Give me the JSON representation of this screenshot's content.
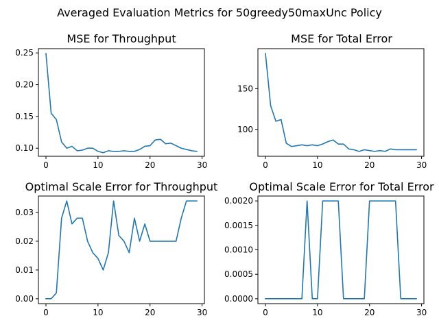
{
  "figure": {
    "title": "Averaged Evaluation Metrics for 50greedy50maxUnc Policy",
    "line_color": "#1f77b4"
  },
  "chart_data": [
    {
      "type": "line",
      "title": "MSE for Throughput",
      "xlabel": "",
      "ylabel": "",
      "x": [
        0,
        1,
        2,
        3,
        4,
        5,
        6,
        7,
        8,
        9,
        10,
        11,
        12,
        13,
        14,
        15,
        16,
        17,
        18,
        19,
        20,
        21,
        22,
        23,
        24,
        25,
        26,
        27,
        28,
        29
      ],
      "series": [
        {
          "values": [
            0.249,
            0.155,
            0.145,
            0.11,
            0.1,
            0.103,
            0.096,
            0.097,
            0.1,
            0.1,
            0.095,
            0.093,
            0.096,
            0.095,
            0.095,
            0.096,
            0.095,
            0.095,
            0.098,
            0.103,
            0.104,
            0.113,
            0.114,
            0.107,
            0.108,
            0.104,
            0.1,
            0.098,
            0.096,
            0.095
          ]
        }
      ],
      "xlim": [
        -1.45,
        30.45
      ],
      "ylim": [
        0.0873,
        0.2567
      ],
      "xticks": [
        0,
        10,
        20,
        30
      ],
      "xtick_labels": [
        "0",
        "10",
        "20",
        "30"
      ],
      "yticks": [
        0.1,
        0.15,
        0.2,
        0.25
      ],
      "ytick_labels": [
        "0.10",
        "0.15",
        "0.20",
        "0.25"
      ],
      "grid": false,
      "legend": "none"
    },
    {
      "type": "line",
      "title": "MSE for Total Error",
      "xlabel": "",
      "ylabel": "",
      "x": [
        0,
        1,
        2,
        3,
        4,
        5,
        6,
        7,
        8,
        9,
        10,
        11,
        12,
        13,
        14,
        15,
        16,
        17,
        18,
        19,
        20,
        21,
        22,
        23,
        24,
        25,
        26,
        27,
        28,
        29
      ],
      "series": [
        {
          "values": [
            193,
            129,
            110,
            112,
            83,
            79,
            80,
            81,
            80,
            81,
            80,
            82,
            85,
            87,
            82,
            82,
            76,
            75,
            73,
            75,
            74,
            73,
            74,
            73,
            76,
            75,
            75,
            75,
            75,
            75
          ]
        }
      ],
      "xlim": [
        -1.45,
        30.45
      ],
      "ylim": [
        67.0,
        199.0
      ],
      "xticks": [
        0,
        10,
        20,
        30
      ],
      "xtick_labels": [
        "0",
        "10",
        "20",
        "30"
      ],
      "yticks": [
        100,
        150
      ],
      "ytick_labels": [
        "100",
        "150"
      ],
      "grid": false,
      "legend": "none"
    },
    {
      "type": "line",
      "title": "Optimal Scale Error for Throughput",
      "xlabel": "",
      "ylabel": "",
      "x": [
        0,
        1,
        2,
        3,
        4,
        5,
        6,
        7,
        8,
        9,
        10,
        11,
        12,
        13,
        14,
        15,
        16,
        17,
        18,
        19,
        20,
        21,
        22,
        23,
        24,
        25,
        26,
        27,
        28,
        29
      ],
      "series": [
        {
          "values": [
            0.0,
            0.0,
            0.002,
            0.028,
            0.034,
            0.026,
            0.028,
            0.028,
            0.02,
            0.016,
            0.014,
            0.01,
            0.016,
            0.034,
            0.022,
            0.02,
            0.016,
            0.028,
            0.02,
            0.026,
            0.02,
            0.02,
            0.02,
            0.02,
            0.02,
            0.02,
            0.028,
            0.034,
            0.034,
            0.034
          ]
        }
      ],
      "xlim": [
        -1.45,
        30.45
      ],
      "ylim": [
        -0.0017,
        0.0357
      ],
      "xticks": [
        0,
        10,
        20,
        30
      ],
      "xtick_labels": [
        "0",
        "10",
        "20",
        "30"
      ],
      "yticks": [
        0.0,
        0.01,
        0.02,
        0.03
      ],
      "ytick_labels": [
        "0.00",
        "0.01",
        "0.02",
        "0.03"
      ],
      "grid": false,
      "legend": "none"
    },
    {
      "type": "line",
      "title": "Optimal Scale Error for Total Error",
      "xlabel": "",
      "ylabel": "",
      "x": [
        0,
        1,
        2,
        3,
        4,
        5,
        6,
        7,
        8,
        9,
        10,
        11,
        12,
        13,
        14,
        15,
        16,
        17,
        18,
        19,
        20,
        21,
        22,
        23,
        24,
        25,
        26,
        27,
        28,
        29
      ],
      "series": [
        {
          "values": [
            0,
            0,
            0,
            0,
            0,
            0,
            0,
            0,
            0.002,
            0,
            0,
            0.002,
            0.002,
            0.002,
            0.002,
            0,
            0,
            0,
            0,
            0,
            0.002,
            0.002,
            0.002,
            0.002,
            0.002,
            0.002,
            0,
            0,
            0,
            0
          ]
        }
      ],
      "xlim": [
        -1.45,
        30.45
      ],
      "ylim": [
        -0.0001,
        0.0021
      ],
      "xticks": [
        0,
        10,
        20,
        30
      ],
      "xtick_labels": [
        "0",
        "10",
        "20",
        "30"
      ],
      "yticks": [
        0.0,
        0.0005,
        0.001,
        0.0015,
        0.002
      ],
      "ytick_labels": [
        "0.0000",
        "0.0005",
        "0.0010",
        "0.0015",
        "0.0020"
      ],
      "grid": false,
      "legend": "none"
    }
  ]
}
